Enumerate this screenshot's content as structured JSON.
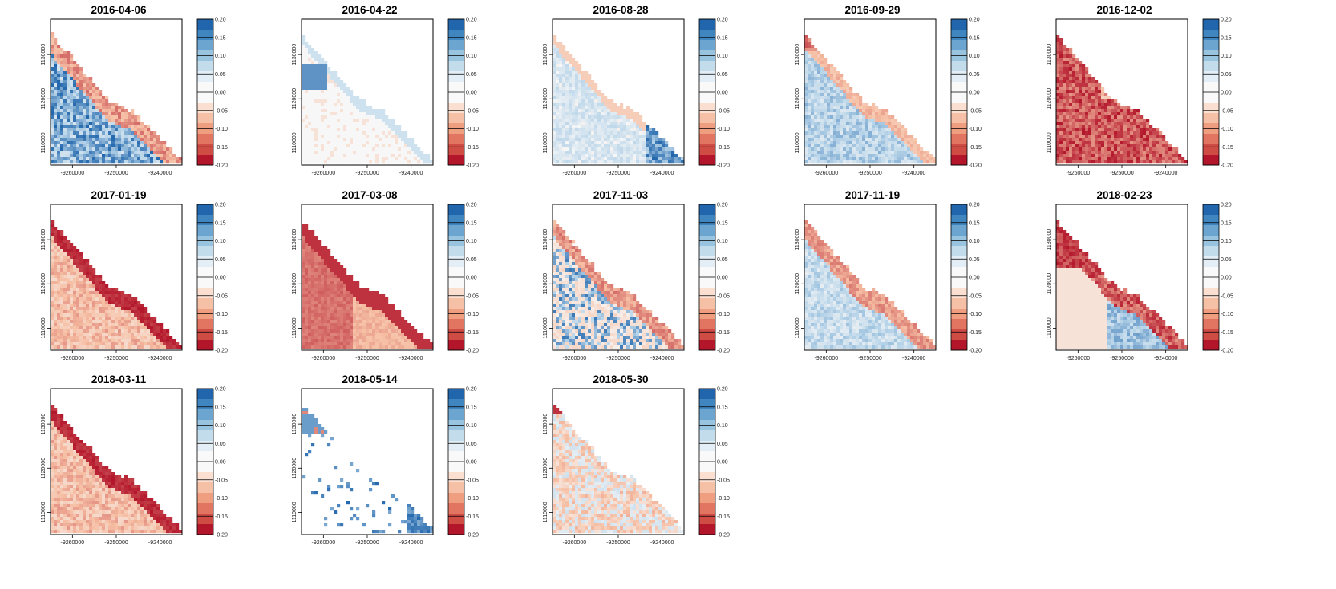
{
  "chart_data": {
    "type": "heatmap",
    "layout": {
      "rows": 3,
      "cols": 5
    },
    "x_ticks": [
      "-9260000",
      "-9250000",
      "-9240000"
    ],
    "y_ticks": [
      "1130000",
      "1120000",
      "1110000"
    ],
    "colorbar": {
      "labels": [
        "0.20",
        "0.15",
        "0.10",
        "0.05",
        "0.00",
        "-0.05",
        "-0.10",
        "-0.15",
        "-0.20"
      ],
      "colors": [
        "#2166ac",
        "#3f86c0",
        "#6ba5d0",
        "#98c4e0",
        "#c3dcec",
        "#e3eef6",
        "#f9f9f9",
        "#f9f9f9",
        "#fbe0d2",
        "#f6c0a6",
        "#ef9e80",
        "#e27462",
        "#cf4c45",
        "#b3162b"
      ]
    },
    "panels": [
      {
        "date": "2016-04-06",
        "pattern": "blue_north_red_coast"
      },
      {
        "date": "2016-04-22",
        "pattern": "mostly_white_blue_edges"
      },
      {
        "date": "2016-08-28",
        "pattern": "light_blue_mixed"
      },
      {
        "date": "2016-09-29",
        "pattern": "blue_with_red_coast"
      },
      {
        "date": "2016-12-02",
        "pattern": "strong_red"
      },
      {
        "date": "2017-01-19",
        "pattern": "red_light"
      },
      {
        "date": "2017-03-08",
        "pattern": "red_dark"
      },
      {
        "date": "2017-11-03",
        "pattern": "mixed_blue_red"
      },
      {
        "date": "2017-11-19",
        "pattern": "light_blue_red_coast"
      },
      {
        "date": "2018-02-23",
        "pattern": "red_west_blue_east"
      },
      {
        "date": "2018-03-11",
        "pattern": "red_light"
      },
      {
        "date": "2018-05-14",
        "pattern": "sparse_blue"
      },
      {
        "date": "2018-05-30",
        "pattern": "mixed_red_light_blue"
      }
    ]
  }
}
